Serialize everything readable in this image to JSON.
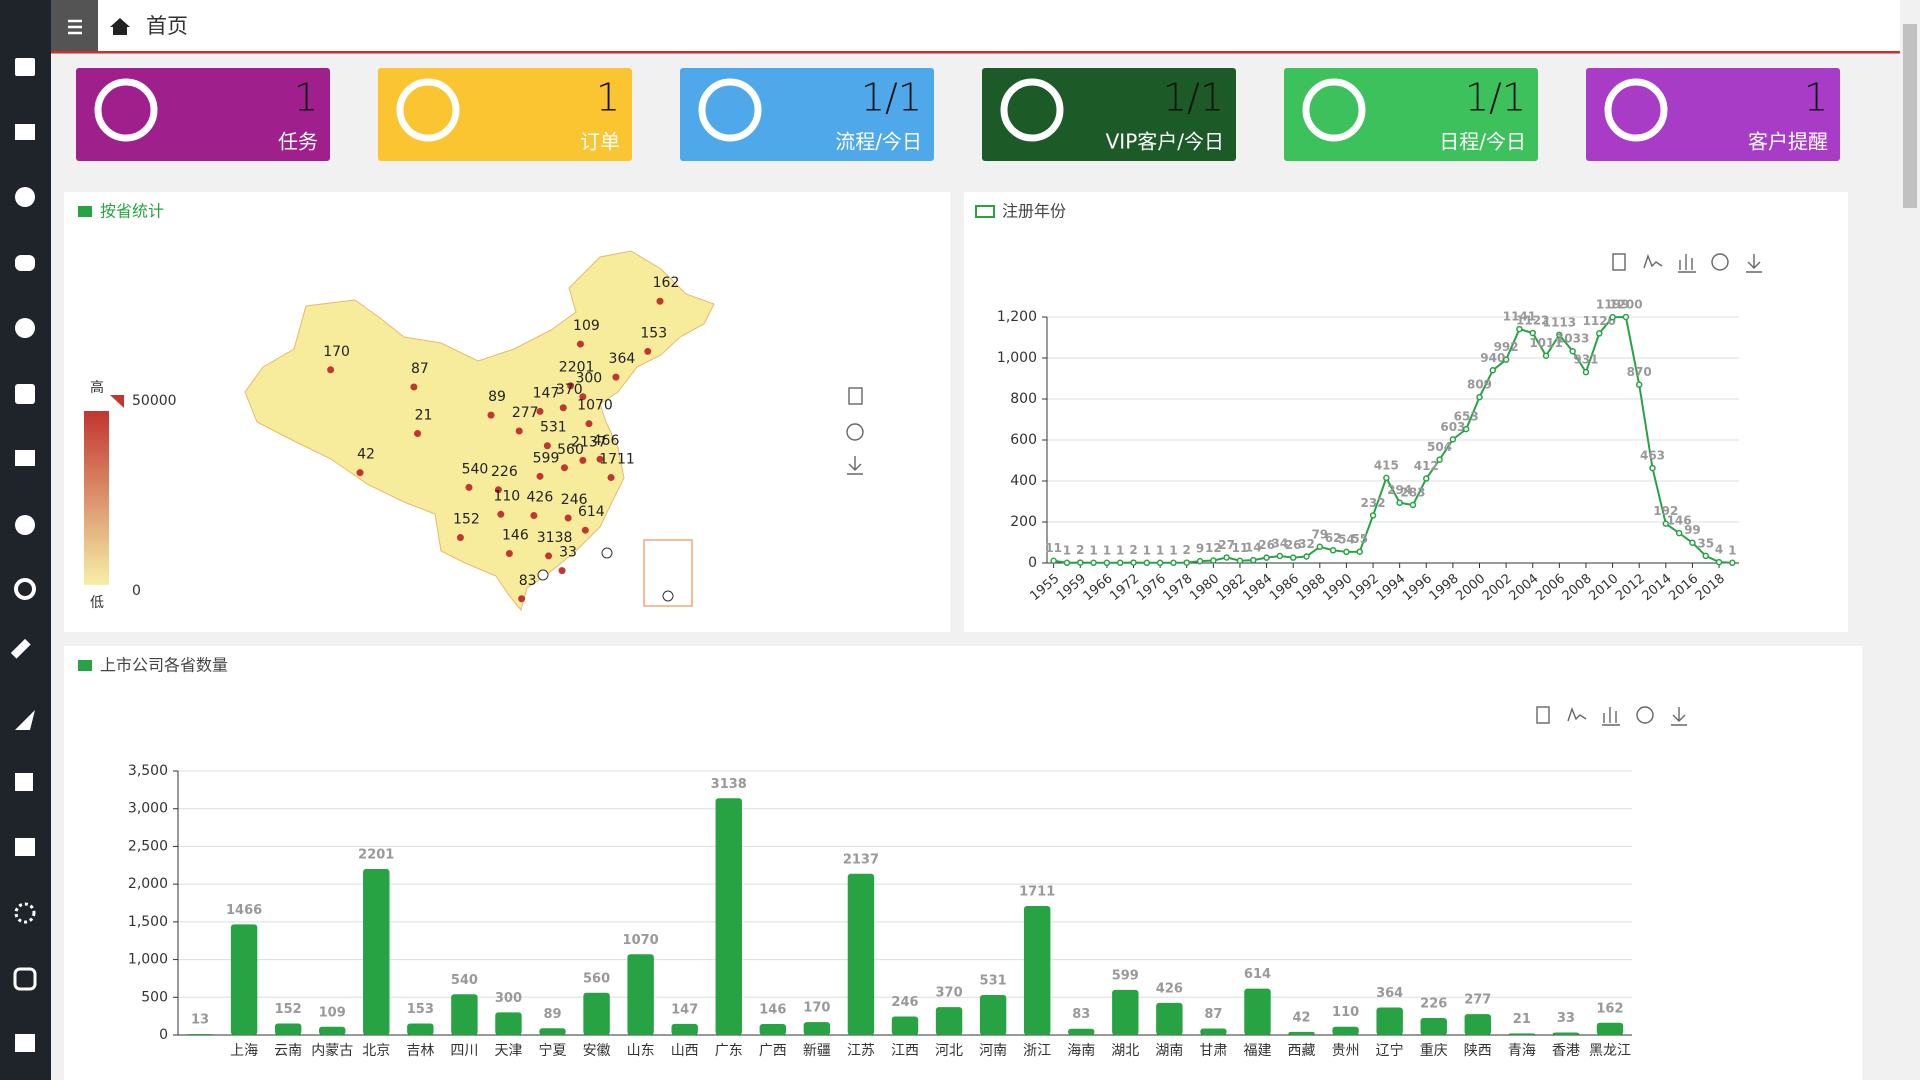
{
  "header": {
    "title": "首页"
  },
  "cards": [
    {
      "value": "1",
      "label": "任务",
      "color": "#9f1f8c"
    },
    {
      "value": "1",
      "label": "订单",
      "color": "#fbc431"
    },
    {
      "value": "1/1",
      "label": "流程/今日",
      "color": "#4fa8ea"
    },
    {
      "value": "1/1",
      "label": "VIP客户/今日",
      "color": "#1c5b28"
    },
    {
      "value": "1/1",
      "label": "日程/今日",
      "color": "#3dc15c"
    },
    {
      "value": "1",
      "label": "客户提醒",
      "color": "#a83cc6"
    }
  ],
  "chart_data": [
    {
      "type": "map",
      "title": "按省统计",
      "values": [
        170,
        87,
        21,
        42,
        162,
        109,
        153,
        364,
        2201,
        300,
        89,
        147,
        370,
        1070,
        277,
        531,
        2137,
        560,
        466,
        599,
        540,
        226,
        1711,
        110,
        426,
        246,
        614,
        152,
        146,
        3138,
        33,
        83
      ],
      "color": "#c23531",
      "visual_map": {
        "min": 0,
        "max": 50000,
        "high_label": "高",
        "low_label": "低",
        "colors": [
          "#f6efa6",
          "#c23531"
        ]
      }
    },
    {
      "type": "line",
      "title": "注册年份",
      "color": "#27a344",
      "categories": [
        "1955",
        null,
        "1959",
        null,
        "1966",
        null,
        "1972",
        null,
        "1976",
        null,
        "1978",
        null,
        "1980",
        null,
        "1982",
        null,
        "1984",
        null,
        "1986",
        null,
        "1988",
        null,
        "1990",
        null,
        "1992",
        null,
        "1994",
        null,
        "1996",
        null,
        "1998",
        null,
        "2000",
        null,
        "2002",
        null,
        "2004",
        null,
        "2006",
        null,
        "2008",
        null,
        "2010",
        null,
        "2012",
        null,
        "2014",
        null,
        "2016",
        null,
        "2018",
        null
      ],
      "values": [
        11,
        1,
        2,
        1,
        1,
        1,
        2,
        1,
        1,
        1,
        2,
        9,
        12,
        27,
        11,
        14,
        26,
        34,
        26,
        32,
        79,
        62,
        54,
        55,
        232,
        415,
        294,
        283,
        412,
        504,
        603,
        653,
        809,
        940,
        992,
        1141,
        1122,
        1011,
        1113,
        1033,
        931,
        1120,
        1199,
        1200,
        870,
        463,
        192,
        146,
        99,
        35,
        4,
        1
      ],
      "ylim": [
        0,
        1200
      ],
      "yticks": [
        0,
        200,
        400,
        600,
        800,
        {
          "value": 1000,
          "label": "1,000"
        },
        {
          "value": 1200,
          "label": "1,200"
        }
      ],
      "grid": true
    },
    {
      "type": "bar",
      "title": "上市公司各省数量",
      "color": "#27a344",
      "categories": [
        null,
        "上海",
        "云南",
        "内蒙古",
        "北京",
        "吉林",
        "四川",
        "天津",
        "宁夏",
        "安徽",
        "山东",
        "山西",
        "广东",
        "广西",
        "新疆",
        "江苏",
        "江西",
        "河北",
        "河南",
        "浙江",
        "海南",
        "湖北",
        "湖南",
        "甘肃",
        "福建",
        "西藏",
        "贵州",
        "辽宁",
        "重庆",
        "陕西",
        "青海",
        "香港",
        "黑龙江"
      ],
      "values": [
        13,
        1466,
        152,
        109,
        2201,
        153,
        540,
        300,
        89,
        560,
        1070,
        147,
        3138,
        146,
        170,
        2137,
        246,
        370,
        531,
        1711,
        83,
        599,
        426,
        87,
        614,
        42,
        110,
        364,
        226,
        277,
        21,
        33,
        162
      ],
      "ylim": [
        0,
        3500
      ],
      "yticks": [
        0,
        500,
        {
          "value": 1000,
          "label": "1,000"
        },
        {
          "value": 1500,
          "label": "1,500"
        },
        {
          "value": 2000,
          "label": "2,000"
        },
        {
          "value": 2500,
          "label": "2,500"
        },
        {
          "value": 3000,
          "label": "3,000"
        },
        {
          "value": 3500,
          "label": "3,500"
        }
      ],
      "grid": true
    }
  ]
}
